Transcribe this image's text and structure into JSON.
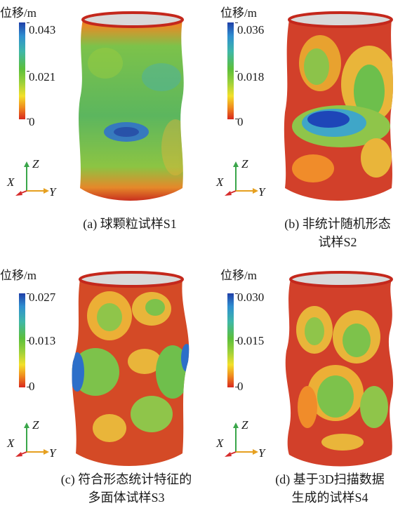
{
  "panels": [
    {
      "legend_title": "位移/m",
      "colorbar_max": "0.043",
      "colorbar_mid": "0.021",
      "colorbar_min": "0",
      "axis_labels": {
        "z": "Z",
        "x": "X",
        "y": "Y"
      },
      "caption_lines": [
        "(a) 球颗粒试样S1"
      ]
    },
    {
      "legend_title": "位移/m",
      "colorbar_max": "0.036",
      "colorbar_mid": "0.018",
      "colorbar_min": "0",
      "axis_labels": {
        "z": "Z",
        "x": "X",
        "y": "Y"
      },
      "caption_lines": [
        "(b) 非统计随机形态",
        "试样S2"
      ]
    },
    {
      "legend_title": "位移/m",
      "colorbar_max": "0.027",
      "colorbar_mid": "0.013",
      "colorbar_min": "0",
      "axis_labels": {
        "z": "Z",
        "x": "X",
        "y": "Y"
      },
      "caption_lines": [
        "(c) 符合形态统计特征的",
        "多面体试样S3"
      ]
    },
    {
      "legend_title": "位移/m",
      "colorbar_max": "0.030",
      "colorbar_mid": "0.015",
      "colorbar_min": "0",
      "axis_labels": {
        "z": "Z",
        "x": "X",
        "y": "Y"
      },
      "caption_lines": [
        "(d) 基于3D扫描数据",
        "生成的试样S4"
      ]
    }
  ],
  "colors": {
    "axis_z": "#3aa64a",
    "axis_y": "#e6a020",
    "axis_x": "#d62c2c",
    "specimen_edge": "#c4281c"
  }
}
